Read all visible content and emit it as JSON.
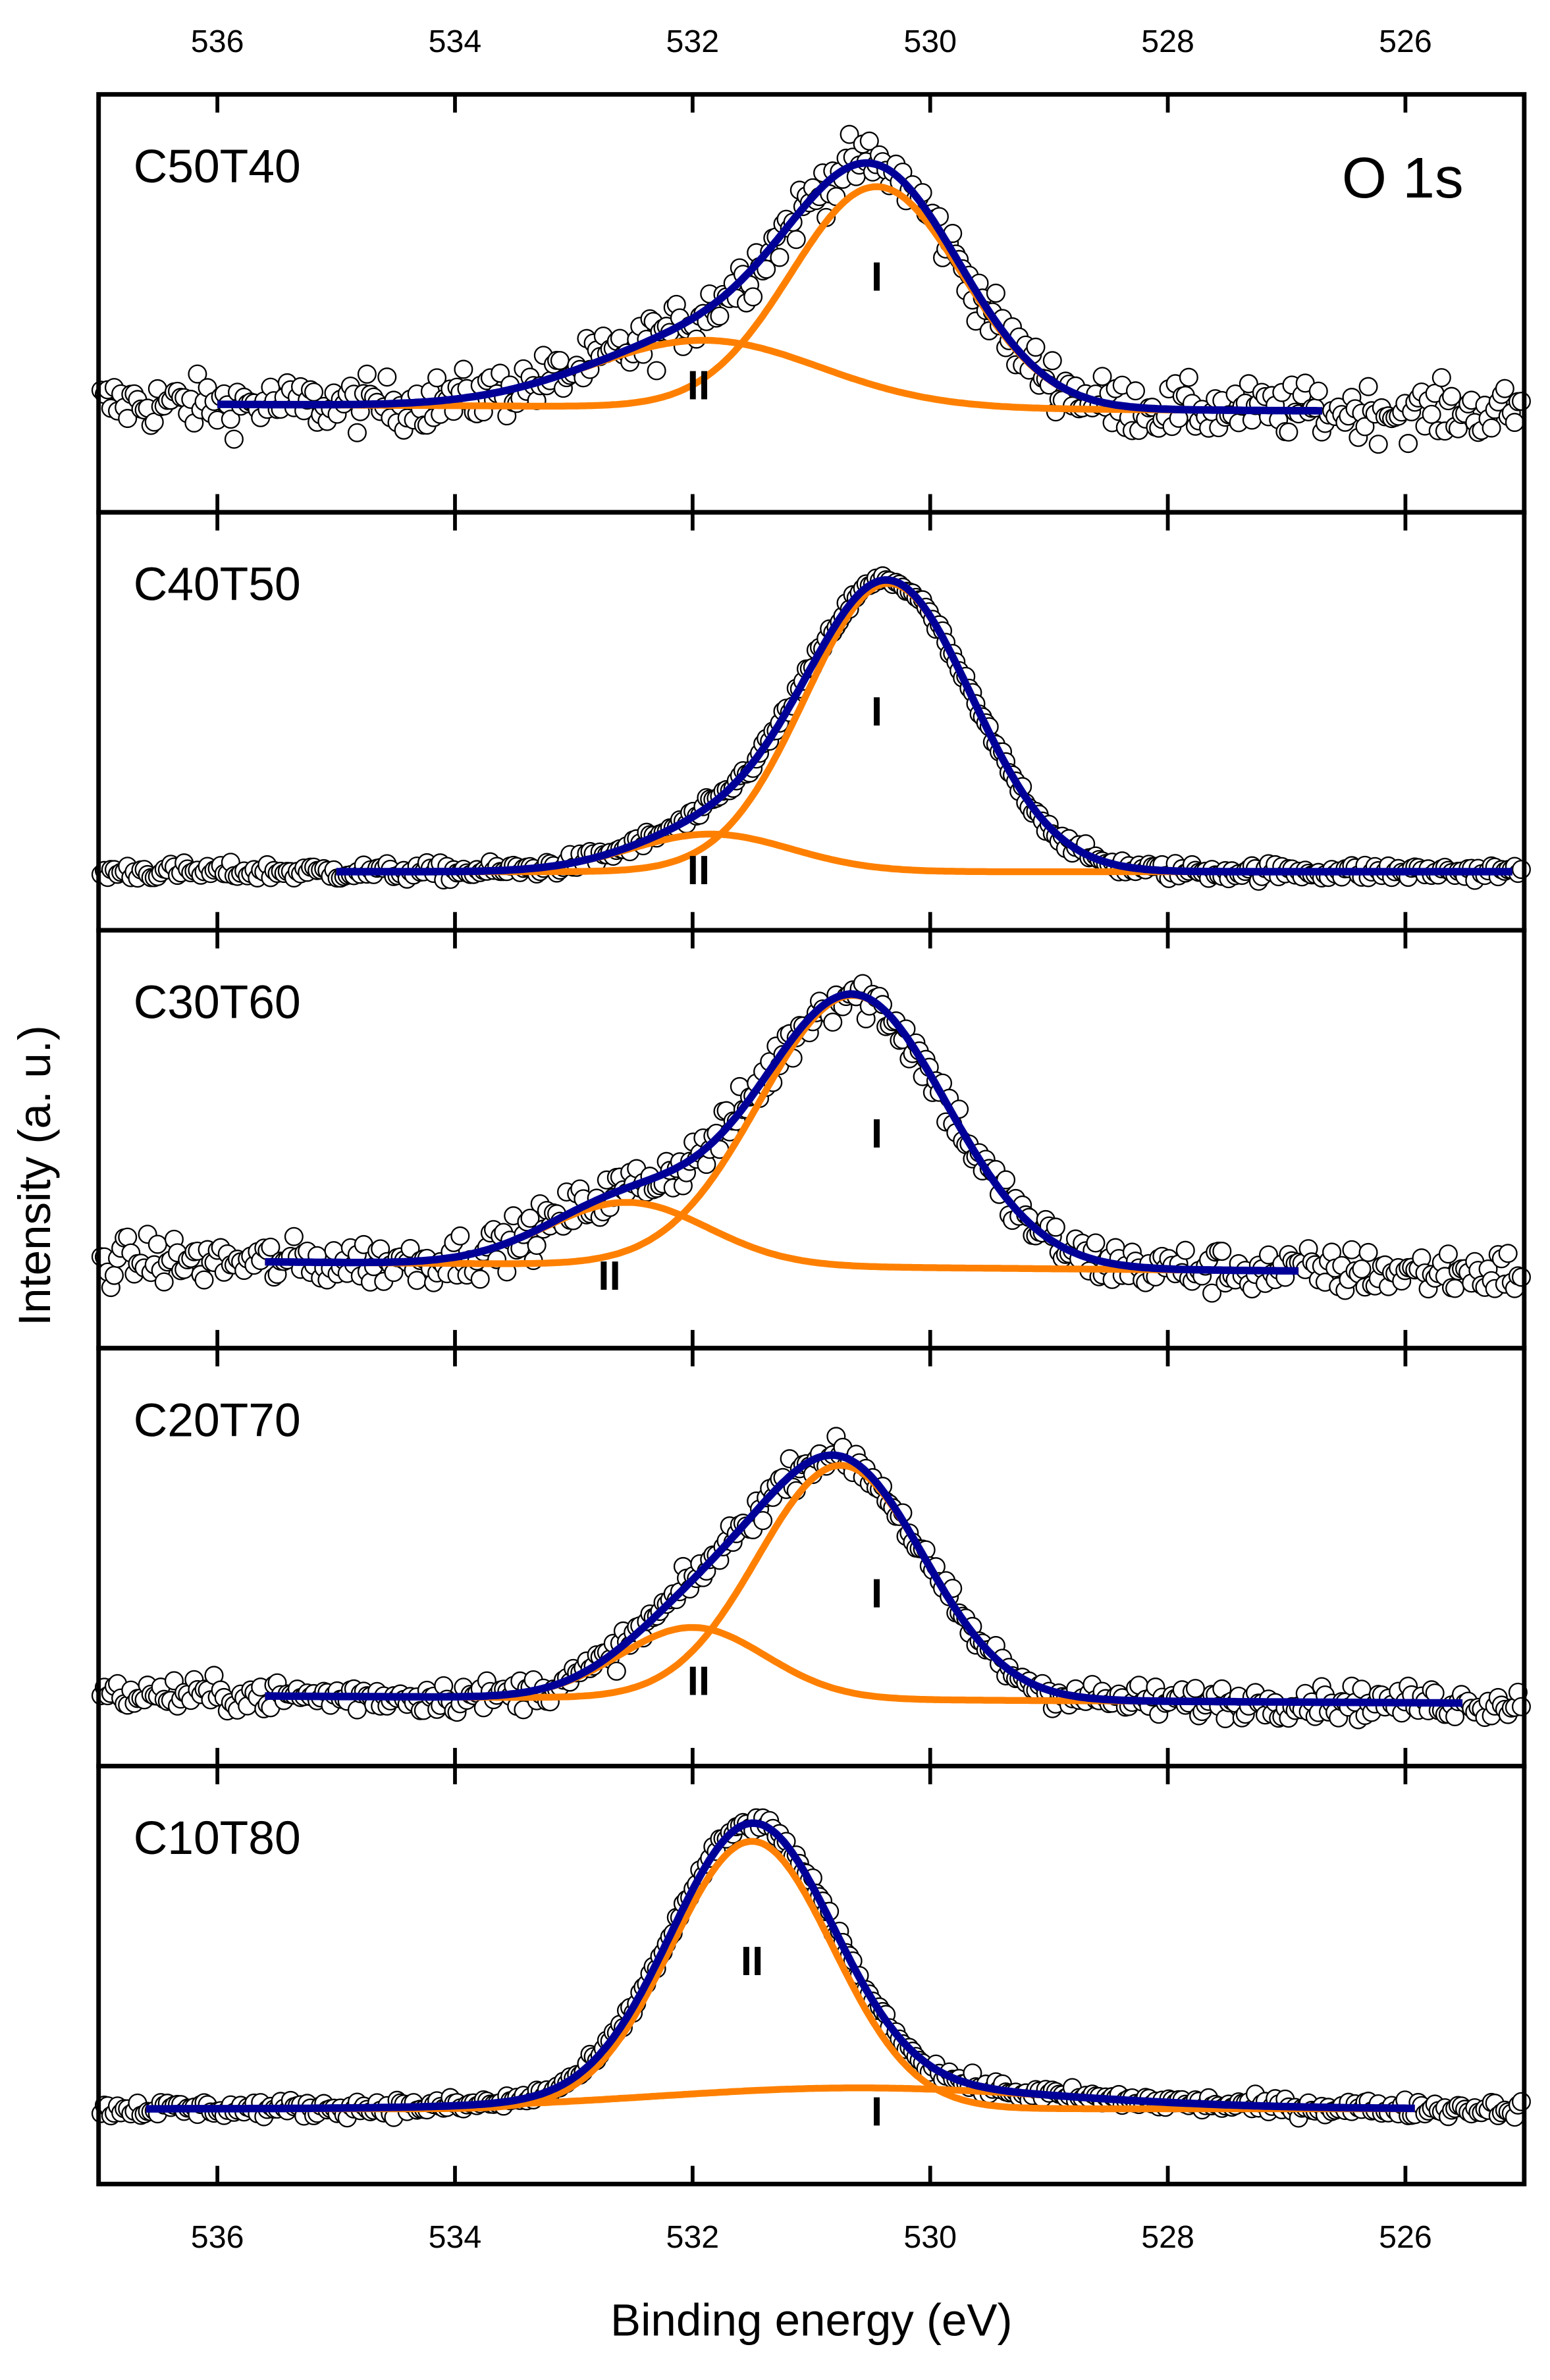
{
  "chart_data": {
    "type": "scatter",
    "title": "",
    "annotation": "O 1s",
    "xlabel": "Binding energy (eV)",
    "ylabel": "Intensity (a. u.)",
    "xlim": [
      537,
      525
    ],
    "x_reversed": true,
    "ylim": [
      0,
      100
    ],
    "xticks": [
      536,
      534,
      532,
      530,
      528,
      526
    ],
    "grid": false,
    "colors": {
      "data": "#000000",
      "envelope": "#000099",
      "component": "#ff8000"
    },
    "panels": [
      {
        "label": "C50T40",
        "noise": 3.2,
        "baseline": [
          26,
          24
        ],
        "fit_range": [
          536.0,
          526.7
        ],
        "components": [
          {
            "name": "I",
            "center": 530.45,
            "height": 53,
            "fwhm": 1.7
          },
          {
            "name": "II",
            "center": 531.9,
            "height": 16,
            "fwhm": 2.3
          }
        ],
        "component_labels": [
          {
            "text": "I",
            "x": 530.45,
            "y": 53
          },
          {
            "text": "II",
            "x": 531.95,
            "y": 27
          }
        ]
      },
      {
        "label": "C40T50",
        "noise": 1.0,
        "baseline": [
          14,
          14
        ],
        "fit_range": [
          535.0,
          525.1
        ],
        "components": [
          {
            "name": "I",
            "center": 530.35,
            "height": 69,
            "fwhm": 1.65
          },
          {
            "name": "II",
            "center": 531.85,
            "height": 9,
            "fwhm": 1.6
          }
        ],
        "component_labels": [
          {
            "text": "I",
            "x": 530.45,
            "y": 49
          },
          {
            "text": "II",
            "x": 531.95,
            "y": 11
          }
        ]
      },
      {
        "label": "C30T60",
        "noise": 2.8,
        "baseline": [
          21,
          18
        ],
        "fit_range": [
          535.6,
          526.9
        ],
        "components": [
          {
            "name": "I",
            "center": 530.65,
            "height": 65,
            "fwhm": 1.85
          },
          {
            "name": "II",
            "center": 532.55,
            "height": 15,
            "fwhm": 1.6
          }
        ],
        "component_labels": [
          {
            "text": "I",
            "x": 530.45,
            "y": 48
          },
          {
            "text": "II",
            "x": 532.7,
            "y": 14
          }
        ]
      },
      {
        "label": "C20T70",
        "noise": 1.9,
        "baseline": [
          17,
          15
        ],
        "fit_range": [
          535.6,
          525.5
        ],
        "components": [
          {
            "name": "I",
            "center": 530.75,
            "height": 56,
            "fwhm": 1.65
          },
          {
            "name": "II",
            "center": 532.0,
            "height": 17,
            "fwhm": 1.45
          }
        ],
        "component_labels": [
          {
            "text": "I",
            "x": 530.45,
            "y": 38
          },
          {
            "text": "II",
            "x": 531.95,
            "y": 17
          }
        ]
      },
      {
        "label": "C10T80",
        "noise": 1.0,
        "baseline": [
          18,
          18
        ],
        "fit_range": [
          536.6,
          525.9
        ],
        "components": [
          {
            "name": "I",
            "center": 530.6,
            "height": 5,
            "fwhm": 4.0
          },
          {
            "name": "II",
            "center": 531.5,
            "height": 64,
            "fwhm": 1.6
          }
        ],
        "component_labels": [
          {
            "text": "I",
            "x": 530.45,
            "y": 14
          },
          {
            "text": "II",
            "x": 531.5,
            "y": 50
          }
        ]
      }
    ]
  }
}
